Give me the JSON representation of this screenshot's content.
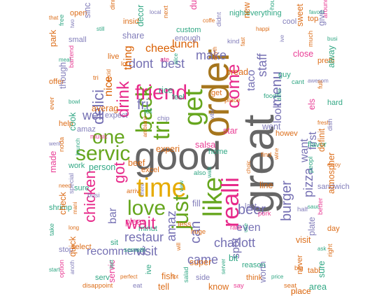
{
  "colors": {
    "gray": "#666666",
    "brown": "#A6761D",
    "gold": "#E6AB02",
    "green": "#66A61E",
    "magenta": "#E7298A",
    "purple": "#7570B3",
    "orange": "#D95F02",
    "teal": "#1B9E77"
  },
  "words": [
    {
      "text": "good",
      "color": "gray"
    },
    {
      "text": "great",
      "color": "gray"
    },
    {
      "text": "order",
      "color": "brown"
    },
    {
      "text": "time",
      "color": "gold"
    },
    {
      "text": "like",
      "color": "green"
    },
    {
      "text": "love",
      "color": "green"
    },
    {
      "text": "get",
      "color": "green"
    },
    {
      "text": "servic",
      "color": "green"
    },
    {
      "text": "one",
      "color": "green"
    },
    {
      "text": "back",
      "color": "green"
    },
    {
      "text": "tri",
      "color": "green"
    },
    {
      "text": "just",
      "color": "green"
    },
    {
      "text": "friend",
      "color": "magenta"
    },
    {
      "text": "realli",
      "color": "magenta"
    },
    {
      "text": "wait",
      "color": "magenta"
    },
    {
      "text": "chicken",
      "color": "magenta"
    },
    {
      "text": "drink",
      "color": "magenta"
    },
    {
      "text": "come",
      "color": "magenta"
    },
    {
      "text": "got",
      "color": "magenta"
    },
    {
      "text": "burger",
      "color": "purple"
    },
    {
      "text": "can",
      "color": "purple"
    },
    {
      "text": "restaur",
      "color": "purple"
    },
    {
      "text": "delici",
      "color": "purple"
    },
    {
      "text": "fri",
      "color": "purple"
    },
    {
      "text": "well",
      "color": "purple"
    },
    {
      "text": "dont",
      "color": "purple"
    },
    {
      "text": "best",
      "color": "purple"
    },
    {
      "text": "make",
      "color": "purple"
    },
    {
      "text": "beer",
      "color": "purple"
    },
    {
      "text": "charlott",
      "color": "purple"
    },
    {
      "text": "menu",
      "color": "purple"
    },
    {
      "text": "staff",
      "color": "purple"
    },
    {
      "text": "taco",
      "color": "purple"
    },
    {
      "text": "pizza",
      "color": "purple"
    },
    {
      "text": "came",
      "color": "purple"
    },
    {
      "text": "visit",
      "color": "purple"
    },
    {
      "text": "amaz",
      "color": "purple"
    },
    {
      "text": "bar",
      "color": "purple"
    },
    {
      "text": "look",
      "color": "purple"
    },
    {
      "text": "want",
      "color": "purple"
    },
    {
      "text": "first",
      "color": "purple"
    },
    {
      "text": "even",
      "color": "purple"
    },
    {
      "text": "spot",
      "color": "purple"
    },
    {
      "text": "recommend",
      "color": "purple"
    },
    {
      "text": "lunch",
      "color": "orange"
    },
    {
      "text": "chees",
      "color": "orange"
    },
    {
      "text": "nice",
      "color": "orange"
    },
    {
      "text": "thing",
      "color": "orange"
    },
    {
      "text": "place",
      "color": "orange"
    }
  ],
  "small_words": [
    "that",
    "free",
    "small",
    "park",
    "meat",
    "bartend",
    "offer",
    "though",
    "bowl",
    "ever",
    "help",
    "cook",
    "went",
    "noda",
    "work",
    "made",
    "need",
    "special",
    "shrimp",
    "check",
    "long",
    "take",
    "stop",
    "quick",
    "start",
    "option",
    "open",
    "sinc",
    "still",
    "dinner",
    "insid",
    "decor",
    "local",
    "next",
    "custom",
    "dump",
    "coffe",
    "didnt",
    "nighteverything",
    "new",
    "happi",
    "hour",
    "cool",
    "sweet",
    "favorit",
    "around",
    "top",
    "give",
    "busi",
    "much",
    "pretti",
    "alway",
    "awesom",
    "full",
    "hard",
    "els",
    "fresh",
    "dish",
    "flavor",
    "definit",
    "enjoy",
    "peopl",
    "sandwich",
    "atmospher",
    "sauc",
    "better",
    "day",
    "plate",
    "ask",
    "right",
    "tabl",
    "sure",
    "anoth",
    "disappoint",
    "serv",
    "servic",
    "perfect",
    "eat",
    "ive",
    "tell",
    "hot",
    "salad",
    "side",
    "know",
    "server",
    "say",
    "think",
    "worth",
    "price",
    "seat",
    "never",
    "area",
    "two",
    "lot",
    "feel",
    "star",
    "wine",
    "busi",
    "minut",
    "super",
    "fast",
    "cant",
    "expect",
    "experi",
    "walk",
    "pork",
    "select",
    "share",
    "slice",
    "place",
    "howev",
    "person",
    "there",
    "huge",
    "reason",
    "close",
    "decid",
    "chip",
    "home",
    "line",
    "mani",
    "someth",
    "enough",
    "bread",
    "differ",
    "music",
    "excel",
    "fill",
    "use",
    "big",
    "live",
    "rice",
    "vibe",
    "find",
    "sure",
    "pleas",
    "will",
    "kind",
    "guy",
    "averag",
    "ambianc",
    "also",
    "last",
    "visit",
    "tast",
    "ate",
    "get",
    "went",
    "brunch",
    "arriv",
    "less",
    "bit",
    "ive",
    "tri",
    "let",
    "salsa",
    "choic",
    "half",
    "sit",
    "fish",
    "anyth",
    "food",
    "amaz",
    "beef",
    "view",
    "rate"
  ]
}
